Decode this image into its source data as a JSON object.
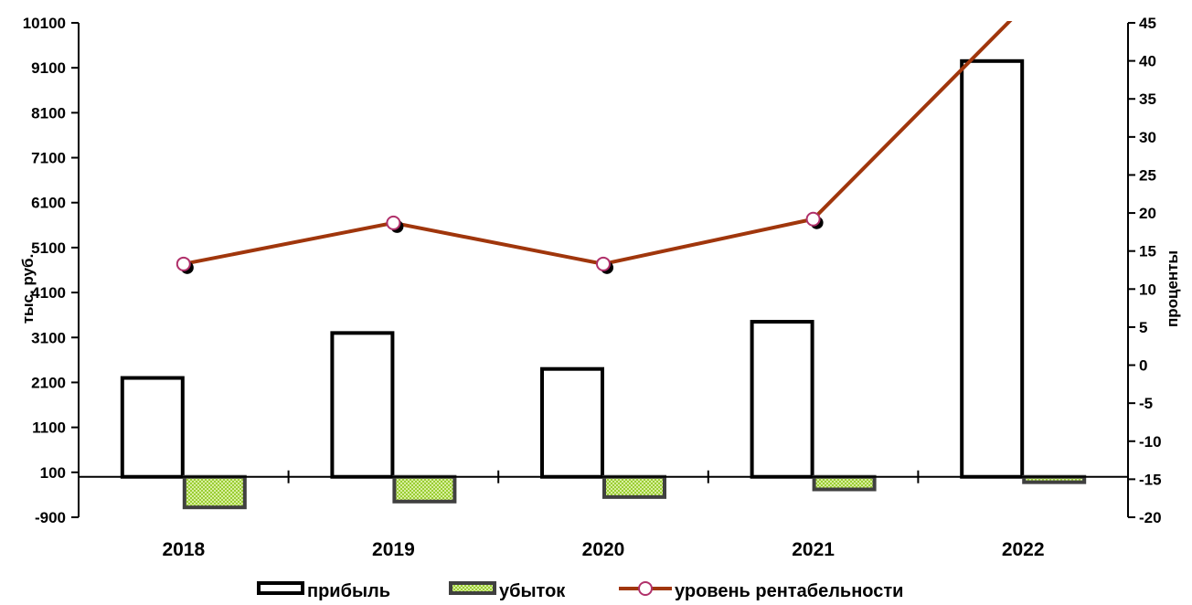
{
  "chart_data": {
    "type": "bar",
    "categories": [
      "2018",
      "2019",
      "2020",
      "2021",
      "2022"
    ],
    "series": [
      {
        "name": "прибыль",
        "axis": "left",
        "kind": "bar",
        "values": [
          2200,
          3200,
          2400,
          3450,
          9250
        ]
      },
      {
        "name": "убыток",
        "axis": "left",
        "kind": "bar",
        "values": [
          -680,
          -550,
          -450,
          -280,
          -120
        ]
      },
      {
        "name": "уровень рентабельности",
        "axis": "right",
        "kind": "line",
        "values": [
          13.3,
          18.7,
          13.3,
          19.2,
          47
        ]
      }
    ],
    "y_left": {
      "label": "тыс. руб.",
      "ylim": [
        -900,
        10100
      ],
      "ticks": [
        "10100",
        "9100",
        "8100",
        "7100",
        "6100",
        "5100",
        "4100",
        "3100",
        "2100",
        "1100",
        "100",
        "-900"
      ]
    },
    "y_right": {
      "label": "проценты",
      "ylim": [
        -20,
        45
      ],
      "ticks": [
        "45",
        "40",
        "35",
        "30",
        "25",
        "20",
        "15",
        "10",
        "5",
        "0",
        "-5",
        "-10",
        "-15",
        "-20"
      ]
    },
    "grid": false,
    "legend_position": "bottom",
    "colors": {
      "profit_fill": "#ffffff",
      "profit_stroke": "#000000",
      "loss_fill": "#9acd32",
      "loss_stroke": "#404040",
      "line": "#a0360c",
      "marker_fill": "#ffffff",
      "marker_stroke": "#b0306a"
    }
  }
}
